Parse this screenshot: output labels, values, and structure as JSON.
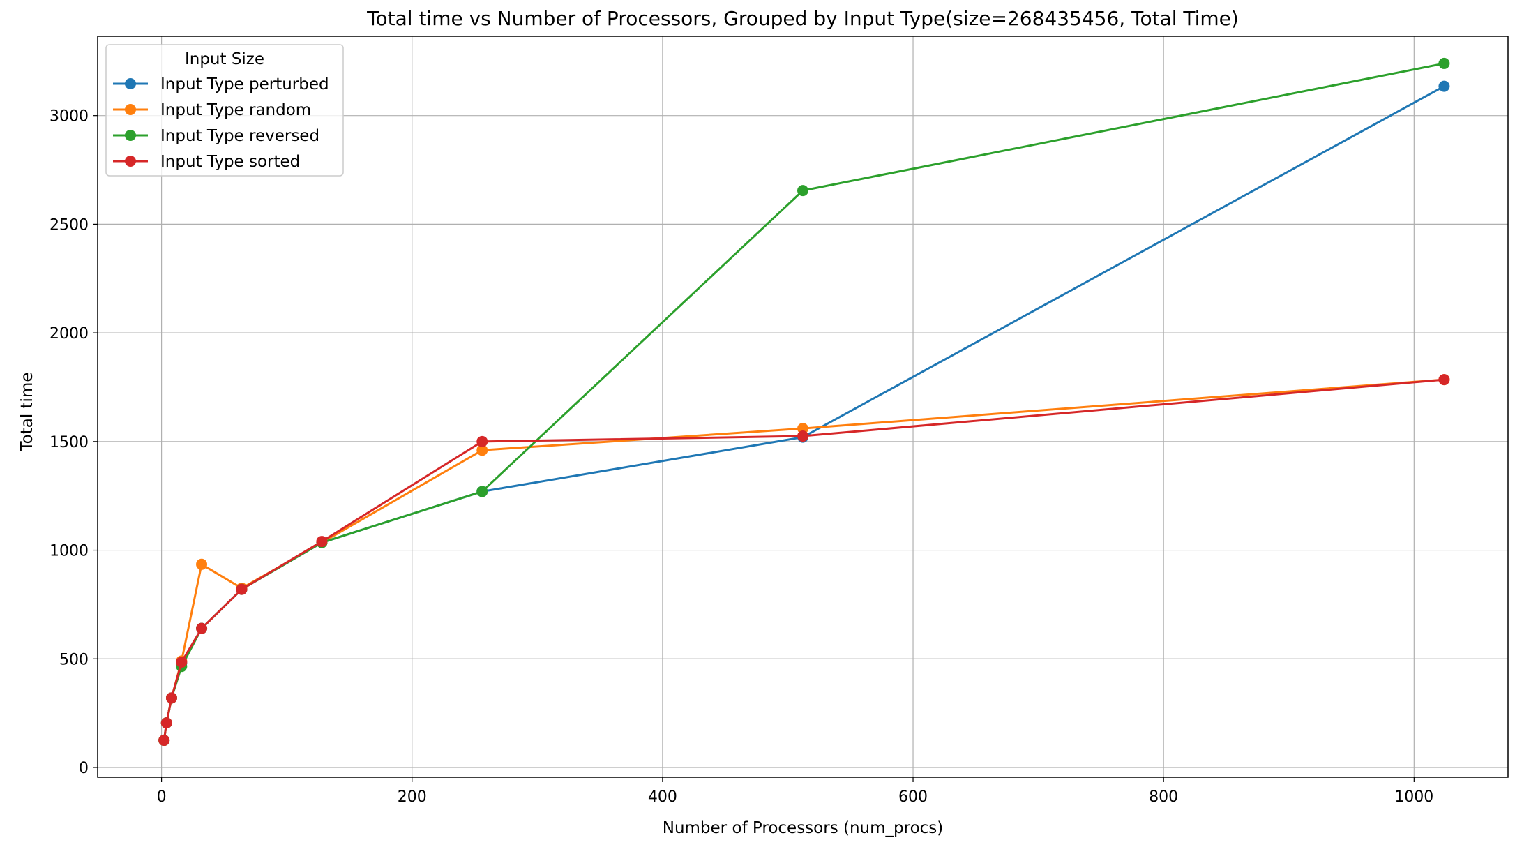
{
  "chart_data": {
    "type": "line",
    "title": "Total time vs Number of Processors, Grouped by Input Type(size=268435456, Total Time)",
    "xlabel": "Number of Processors (num_procs)",
    "ylabel": "Total time",
    "xlim": [
      -51,
      1075
    ],
    "ylim": [
      -45,
      3365
    ],
    "xticks": [
      0,
      200,
      400,
      600,
      800,
      1000
    ],
    "yticks": [
      0,
      500,
      1000,
      1500,
      2000,
      2500,
      3000
    ],
    "grid": true,
    "legend": {
      "title": "Input Size",
      "placement": "top-left"
    },
    "x": [
      2,
      4,
      8,
      16,
      32,
      64,
      128,
      256,
      512,
      1024
    ],
    "series": [
      {
        "name": "Input Type perturbed",
        "color": "#1f77b4",
        "values": [
          125,
          205,
          320,
          480,
          640,
          820,
          1035,
          1270,
          1520,
          3135
        ]
      },
      {
        "name": "Input Type random",
        "color": "#ff7f0e",
        "values": [
          125,
          205,
          320,
          490,
          935,
          825,
          1035,
          1460,
          1560,
          1785
        ]
      },
      {
        "name": "Input Type reversed",
        "color": "#2ca02c",
        "values": [
          125,
          205,
          320,
          465,
          640,
          820,
          1035,
          1270,
          2655,
          3240
        ]
      },
      {
        "name": "Input Type sorted",
        "color": "#d62728",
        "values": [
          125,
          205,
          320,
          485,
          640,
          820,
          1040,
          1500,
          1525,
          1785
        ]
      }
    ]
  }
}
